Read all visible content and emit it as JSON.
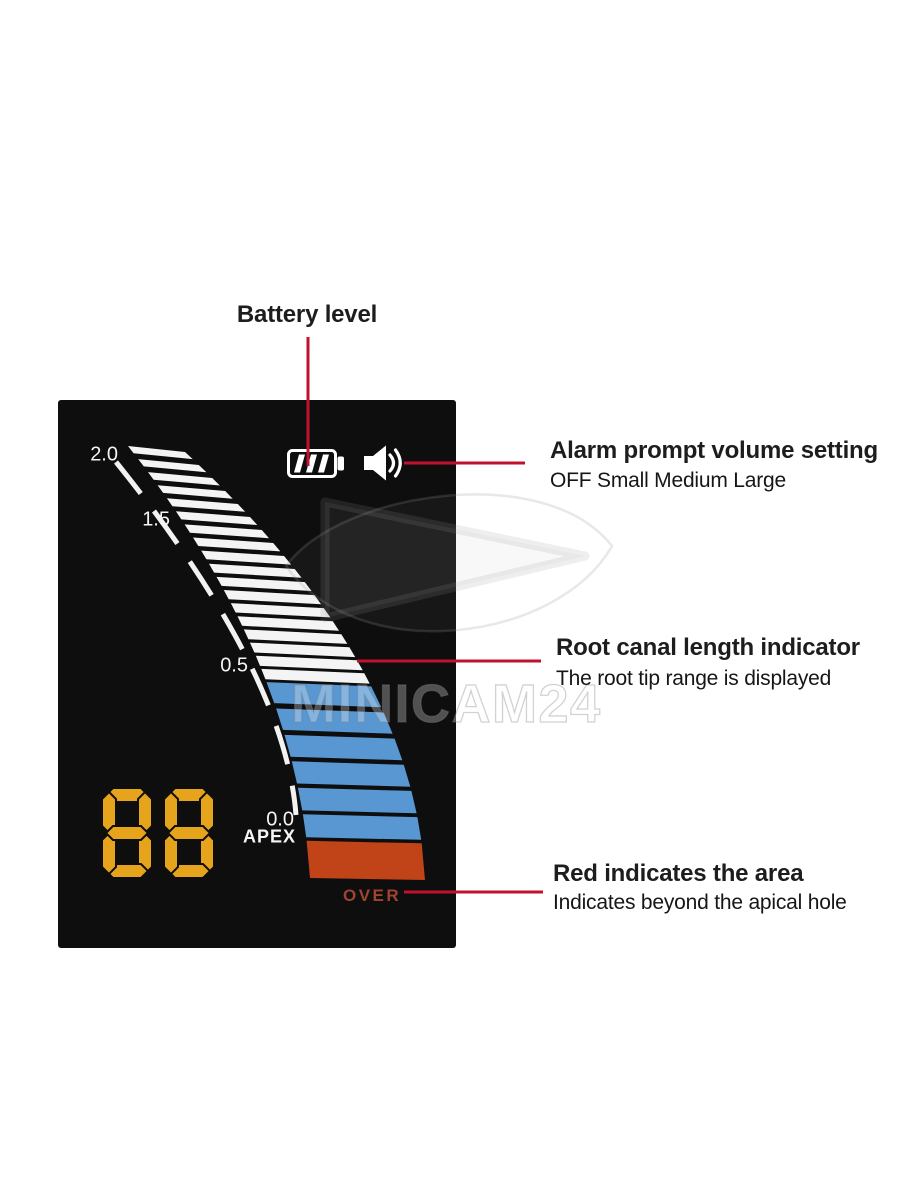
{
  "annotations": {
    "battery": {
      "label": "Battery level"
    },
    "alarm": {
      "title": "Alarm prompt volume setting",
      "subtitle": "OFF Small Medium Large"
    },
    "root_canal": {
      "title": "Root canal length indicator",
      "subtitle": "The root tip range is displayed"
    },
    "over_area": {
      "title": "Red indicates the area",
      "subtitle": "Indicates beyond the apical hole"
    },
    "line_color": "#c2112f"
  },
  "display": {
    "digits": "88",
    "apex_label": "APEX",
    "over_label": "OVER",
    "scale_labels": [
      "2.0",
      "1.5",
      "0.5",
      "0.0"
    ],
    "gauge": {
      "white_bars": 18,
      "blue_bars": 6,
      "red_bars": 1,
      "colors": {
        "white": "#f4f4f4",
        "blue": "#5897d2",
        "red": "#c14318"
      }
    },
    "colors": {
      "panel_bg": "#0e0e0e",
      "digit_amber": "#e5a41c",
      "over_text": "#a04330",
      "label_white": "#f5f5f5",
      "icon_white": "#ffffff"
    }
  },
  "watermark": {
    "text": "MINICAM24"
  }
}
